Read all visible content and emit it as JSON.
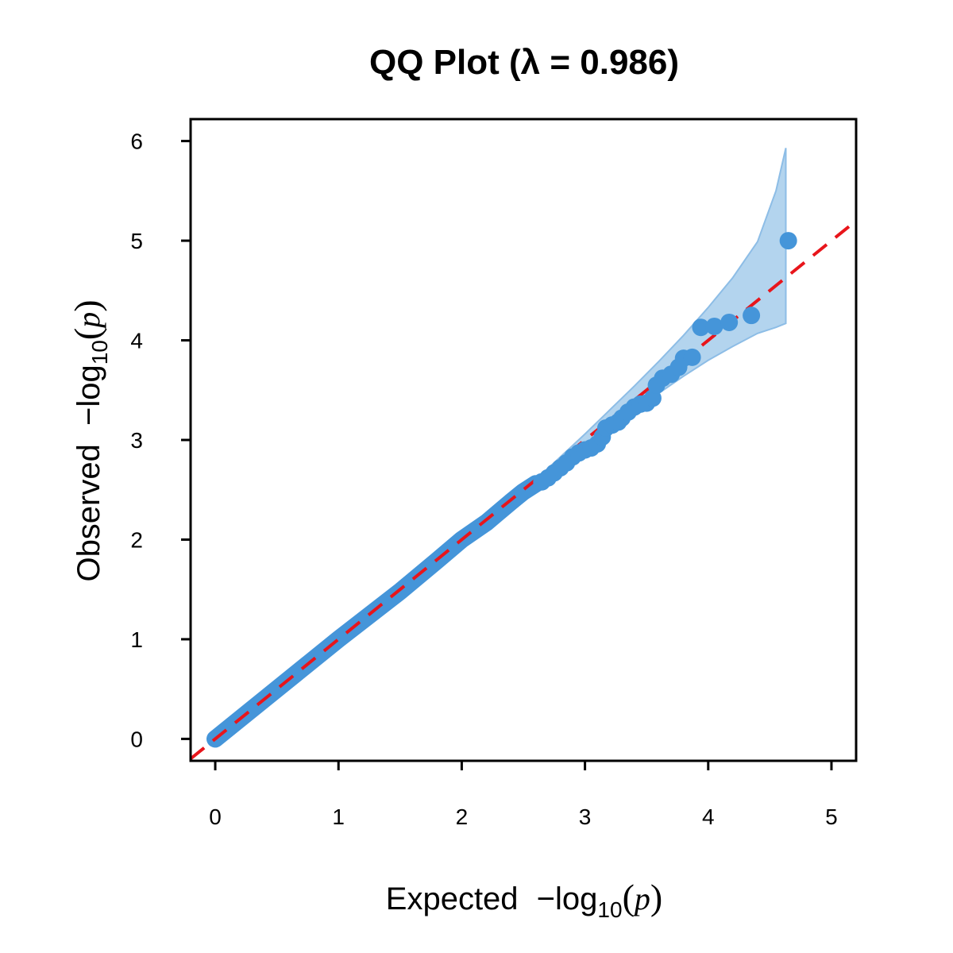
{
  "chart_data": {
    "type": "scatter",
    "title": "QQ Plot (λ = 0.986)",
    "xlabel": {
      "prefix": "Expected",
      "minus": "−",
      "log": "log",
      "sub": "10",
      "open": "(",
      "var": "p",
      "close": ")"
    },
    "ylabel": {
      "prefix": "Observed",
      "minus": "−",
      "log": "log",
      "sub": "10",
      "open": "(",
      "var": "p",
      "close": ")"
    },
    "xlim": [
      -0.2,
      5.2
    ],
    "ylim": [
      -0.22,
      6.22
    ],
    "xticks": [
      "0",
      "1",
      "2",
      "3",
      "4",
      "5"
    ],
    "yticks": [
      "0",
      "1",
      "2",
      "3",
      "4",
      "5",
      "6"
    ],
    "grid": false,
    "reference_line": {
      "slope": 1,
      "intercept": 0,
      "color": "#e8151b",
      "style": "dashed"
    },
    "point_color": "#4595d9",
    "band_color": "#b3d4ee",
    "band_edge_color": "#8dbde6",
    "confidence_band": {
      "x": [
        2.6,
        2.8,
        3.0,
        3.2,
        3.4,
        3.6,
        3.8,
        4.0,
        4.2,
        4.4,
        4.55,
        4.63
      ],
      "upper": [
        2.6,
        2.83,
        3.06,
        3.3,
        3.54,
        3.79,
        4.05,
        4.33,
        4.63,
        4.99,
        5.5,
        5.93
      ],
      "lower": [
        2.6,
        2.78,
        2.96,
        3.13,
        3.3,
        3.47,
        3.64,
        3.8,
        3.94,
        4.07,
        4.13,
        4.17
      ]
    },
    "points": [
      {
        "x": 2.65,
        "y": 2.58
      },
      {
        "x": 2.7,
        "y": 2.62
      },
      {
        "x": 2.75,
        "y": 2.67
      },
      {
        "x": 2.8,
        "y": 2.72
      },
      {
        "x": 2.85,
        "y": 2.77
      },
      {
        "x": 2.9,
        "y": 2.83
      },
      {
        "x": 2.95,
        "y": 2.87
      },
      {
        "x": 3.0,
        "y": 2.9
      },
      {
        "x": 3.05,
        "y": 2.92
      },
      {
        "x": 3.1,
        "y": 2.96
      },
      {
        "x": 3.14,
        "y": 3.03
      },
      {
        "x": 3.17,
        "y": 3.12
      },
      {
        "x": 3.22,
        "y": 3.15
      },
      {
        "x": 3.27,
        "y": 3.18
      },
      {
        "x": 3.3,
        "y": 3.22
      },
      {
        "x": 3.35,
        "y": 3.28
      },
      {
        "x": 3.4,
        "y": 3.33
      },
      {
        "x": 3.45,
        "y": 3.36
      },
      {
        "x": 3.5,
        "y": 3.37
      },
      {
        "x": 3.55,
        "y": 3.42
      },
      {
        "x": 3.58,
        "y": 3.55
      },
      {
        "x": 3.63,
        "y": 3.62
      },
      {
        "x": 3.7,
        "y": 3.66
      },
      {
        "x": 3.76,
        "y": 3.73
      },
      {
        "x": 3.8,
        "y": 3.82
      },
      {
        "x": 3.87,
        "y": 3.83
      },
      {
        "x": 3.94,
        "y": 4.13
      },
      {
        "x": 4.05,
        "y": 4.14
      },
      {
        "x": 4.17,
        "y": 4.18
      },
      {
        "x": 4.35,
        "y": 4.25
      },
      {
        "x": 4.65,
        "y": 5.0
      }
    ],
    "bulk_path": [
      [
        0.0,
        0.0
      ],
      [
        0.5,
        0.5
      ],
      [
        1.0,
        1.0
      ],
      [
        1.5,
        1.48
      ],
      [
        1.8,
        1.79
      ],
      [
        2.0,
        2.0
      ],
      [
        2.2,
        2.17
      ],
      [
        2.4,
        2.38
      ],
      [
        2.5,
        2.48
      ],
      [
        2.6,
        2.56
      ]
    ]
  }
}
